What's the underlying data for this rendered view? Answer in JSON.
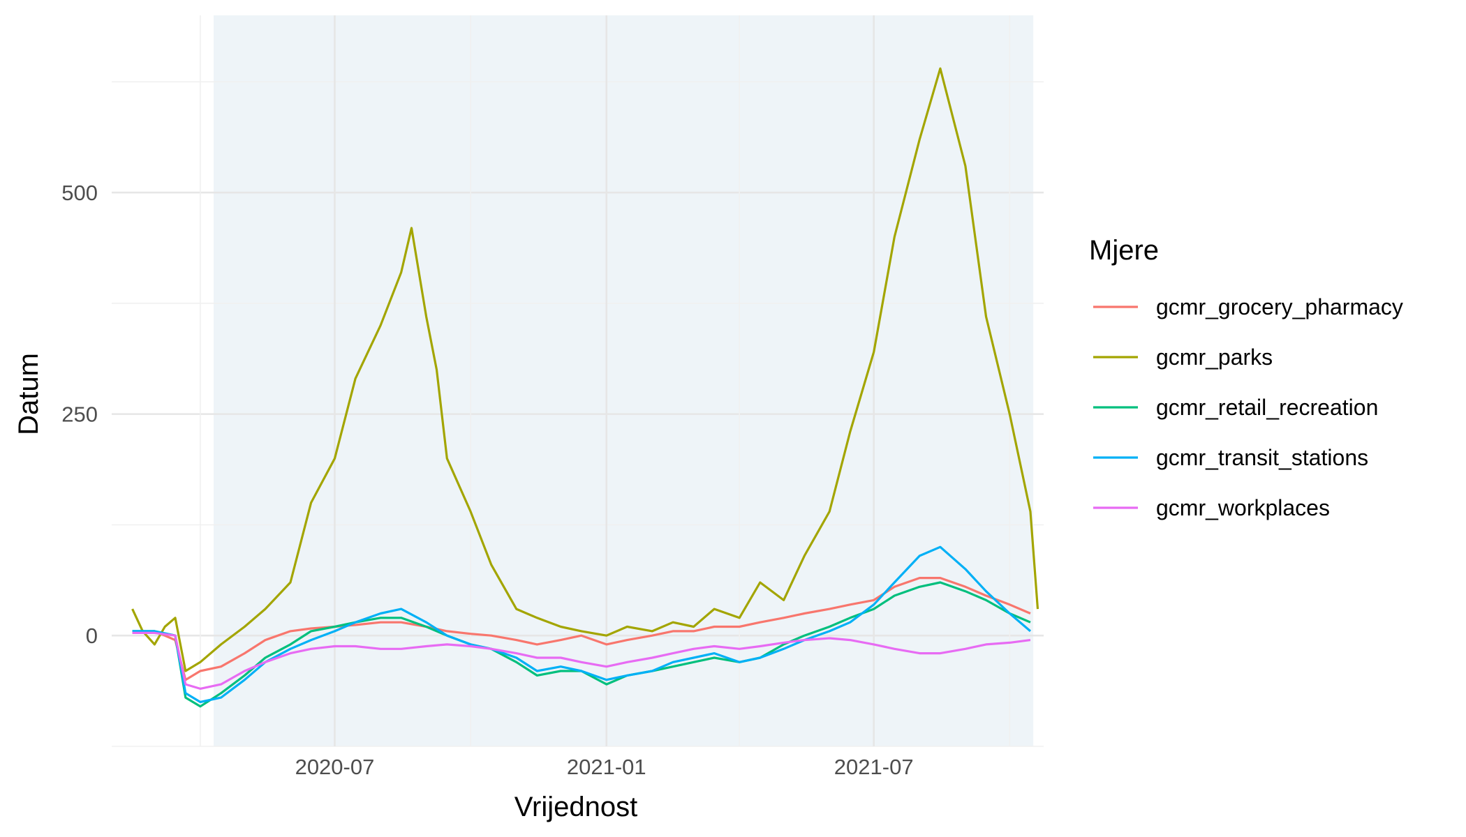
{
  "chart_data": {
    "type": "line",
    "xlabel": "Vrijednost",
    "ylabel": "Datum",
    "x_ticks": [
      "2020-07",
      "2021-01",
      "2021-07"
    ],
    "y_ticks": [
      0,
      250,
      500
    ],
    "xlim": [
      "2020-02-01",
      "2021-10-24"
    ],
    "ylim": [
      -125,
      700
    ],
    "shaded_region": {
      "from": "2020-04-10",
      "to": "2021-10-17",
      "color": "#eef4f8"
    },
    "grid": true,
    "legend": {
      "title": "Mjere",
      "position": "right"
    },
    "series": [
      {
        "name": "gcmr_grocery_pharmacy",
        "color": "#F8766D",
        "points": [
          [
            "2020-02-15",
            3
          ],
          [
            "2020-03-01",
            5
          ],
          [
            "2020-03-15",
            -5
          ],
          [
            "2020-03-22",
            -50
          ],
          [
            "2020-04-01",
            -40
          ],
          [
            "2020-04-15",
            -35
          ],
          [
            "2020-05-01",
            -20
          ],
          [
            "2020-05-15",
            -5
          ],
          [
            "2020-06-01",
            5
          ],
          [
            "2020-06-15",
            8
          ],
          [
            "2020-07-01",
            10
          ],
          [
            "2020-07-15",
            12
          ],
          [
            "2020-08-01",
            15
          ],
          [
            "2020-08-15",
            15
          ],
          [
            "2020-09-01",
            10
          ],
          [
            "2020-09-15",
            5
          ],
          [
            "2020-10-01",
            2
          ],
          [
            "2020-10-15",
            0
          ],
          [
            "2020-11-01",
            -5
          ],
          [
            "2020-11-15",
            -10
          ],
          [
            "2020-12-01",
            -5
          ],
          [
            "2020-12-15",
            0
          ],
          [
            "2021-01-01",
            -10
          ],
          [
            "2021-01-15",
            -5
          ],
          [
            "2021-02-01",
            0
          ],
          [
            "2021-02-15",
            5
          ],
          [
            "2021-03-01",
            5
          ],
          [
            "2021-03-15",
            10
          ],
          [
            "2021-04-01",
            10
          ],
          [
            "2021-04-15",
            15
          ],
          [
            "2021-05-01",
            20
          ],
          [
            "2021-05-15",
            25
          ],
          [
            "2021-06-01",
            30
          ],
          [
            "2021-06-15",
            35
          ],
          [
            "2021-07-01",
            40
          ],
          [
            "2021-07-15",
            55
          ],
          [
            "2021-08-01",
            65
          ],
          [
            "2021-08-15",
            65
          ],
          [
            "2021-09-01",
            55
          ],
          [
            "2021-09-15",
            45
          ],
          [
            "2021-10-01",
            35
          ],
          [
            "2021-10-15",
            25
          ]
        ]
      },
      {
        "name": "gcmr_parks",
        "color": "#A3A500",
        "points": [
          [
            "2020-02-15",
            30
          ],
          [
            "2020-02-22",
            5
          ],
          [
            "2020-03-01",
            -10
          ],
          [
            "2020-03-08",
            10
          ],
          [
            "2020-03-15",
            20
          ],
          [
            "2020-03-22",
            -40
          ],
          [
            "2020-04-01",
            -30
          ],
          [
            "2020-04-15",
            -10
          ],
          [
            "2020-05-01",
            10
          ],
          [
            "2020-05-15",
            30
          ],
          [
            "2020-06-01",
            60
          ],
          [
            "2020-06-15",
            150
          ],
          [
            "2020-07-01",
            200
          ],
          [
            "2020-07-15",
            290
          ],
          [
            "2020-08-01",
            350
          ],
          [
            "2020-08-15",
            410
          ],
          [
            "2020-08-22",
            460
          ],
          [
            "2020-09-01",
            360
          ],
          [
            "2020-09-08",
            300
          ],
          [
            "2020-09-15",
            200
          ],
          [
            "2020-10-01",
            140
          ],
          [
            "2020-10-15",
            80
          ],
          [
            "2020-11-01",
            30
          ],
          [
            "2020-11-15",
            20
          ],
          [
            "2020-12-01",
            10
          ],
          [
            "2020-12-15",
            5
          ],
          [
            "2021-01-01",
            0
          ],
          [
            "2021-01-15",
            10
          ],
          [
            "2021-02-01",
            5
          ],
          [
            "2021-02-15",
            15
          ],
          [
            "2021-03-01",
            10
          ],
          [
            "2021-03-15",
            30
          ],
          [
            "2021-04-01",
            20
          ],
          [
            "2021-04-15",
            60
          ],
          [
            "2021-05-01",
            40
          ],
          [
            "2021-05-15",
            90
          ],
          [
            "2021-06-01",
            140
          ],
          [
            "2021-06-15",
            230
          ],
          [
            "2021-07-01",
            320
          ],
          [
            "2021-07-15",
            450
          ],
          [
            "2021-08-01",
            560
          ],
          [
            "2021-08-15",
            640
          ],
          [
            "2021-09-01",
            530
          ],
          [
            "2021-09-15",
            360
          ],
          [
            "2021-10-01",
            250
          ],
          [
            "2021-10-15",
            140
          ],
          [
            "2021-10-20",
            30
          ]
        ]
      },
      {
        "name": "gcmr_retail_recreation",
        "color": "#00BF7D",
        "points": [
          [
            "2020-02-15",
            5
          ],
          [
            "2020-03-01",
            5
          ],
          [
            "2020-03-15",
            0
          ],
          [
            "2020-03-22",
            -70
          ],
          [
            "2020-04-01",
            -80
          ],
          [
            "2020-04-15",
            -65
          ],
          [
            "2020-05-01",
            -45
          ],
          [
            "2020-05-15",
            -25
          ],
          [
            "2020-06-01",
            -10
          ],
          [
            "2020-06-15",
            5
          ],
          [
            "2020-07-01",
            10
          ],
          [
            "2020-07-15",
            15
          ],
          [
            "2020-08-01",
            20
          ],
          [
            "2020-08-15",
            20
          ],
          [
            "2020-09-01",
            10
          ],
          [
            "2020-09-15",
            0
          ],
          [
            "2020-10-01",
            -10
          ],
          [
            "2020-10-15",
            -15
          ],
          [
            "2020-11-01",
            -30
          ],
          [
            "2020-11-15",
            -45
          ],
          [
            "2020-12-01",
            -40
          ],
          [
            "2020-12-15",
            -40
          ],
          [
            "2021-01-01",
            -55
          ],
          [
            "2021-01-15",
            -45
          ],
          [
            "2021-02-01",
            -40
          ],
          [
            "2021-02-15",
            -35
          ],
          [
            "2021-03-01",
            -30
          ],
          [
            "2021-03-15",
            -25
          ],
          [
            "2021-04-01",
            -30
          ],
          [
            "2021-04-15",
            -25
          ],
          [
            "2021-05-01",
            -10
          ],
          [
            "2021-05-15",
            0
          ],
          [
            "2021-06-01",
            10
          ],
          [
            "2021-06-15",
            20
          ],
          [
            "2021-07-01",
            30
          ],
          [
            "2021-07-15",
            45
          ],
          [
            "2021-08-01",
            55
          ],
          [
            "2021-08-15",
            60
          ],
          [
            "2021-09-01",
            50
          ],
          [
            "2021-09-15",
            40
          ],
          [
            "2021-10-01",
            25
          ],
          [
            "2021-10-15",
            15
          ]
        ]
      },
      {
        "name": "gcmr_transit_stations",
        "color": "#00B0F6",
        "points": [
          [
            "2020-02-15",
            5
          ],
          [
            "2020-03-01",
            5
          ],
          [
            "2020-03-15",
            0
          ],
          [
            "2020-03-22",
            -65
          ],
          [
            "2020-04-01",
            -75
          ],
          [
            "2020-04-15",
            -70
          ],
          [
            "2020-05-01",
            -50
          ],
          [
            "2020-05-15",
            -30
          ],
          [
            "2020-06-01",
            -15
          ],
          [
            "2020-06-15",
            -5
          ],
          [
            "2020-07-01",
            5
          ],
          [
            "2020-07-15",
            15
          ],
          [
            "2020-08-01",
            25
          ],
          [
            "2020-08-15",
            30
          ],
          [
            "2020-09-01",
            15
          ],
          [
            "2020-09-15",
            0
          ],
          [
            "2020-10-01",
            -10
          ],
          [
            "2020-10-15",
            -15
          ],
          [
            "2020-11-01",
            -25
          ],
          [
            "2020-11-15",
            -40
          ],
          [
            "2020-12-01",
            -35
          ],
          [
            "2020-12-15",
            -40
          ],
          [
            "2021-01-01",
            -50
          ],
          [
            "2021-01-15",
            -45
          ],
          [
            "2021-02-01",
            -40
          ],
          [
            "2021-02-15",
            -30
          ],
          [
            "2021-03-01",
            -25
          ],
          [
            "2021-03-15",
            -20
          ],
          [
            "2021-04-01",
            -30
          ],
          [
            "2021-04-15",
            -25
          ],
          [
            "2021-05-01",
            -15
          ],
          [
            "2021-05-15",
            -5
          ],
          [
            "2021-06-01",
            5
          ],
          [
            "2021-06-15",
            15
          ],
          [
            "2021-07-01",
            35
          ],
          [
            "2021-07-15",
            60
          ],
          [
            "2021-08-01",
            90
          ],
          [
            "2021-08-15",
            100
          ],
          [
            "2021-09-01",
            75
          ],
          [
            "2021-09-15",
            50
          ],
          [
            "2021-10-01",
            25
          ],
          [
            "2021-10-15",
            5
          ]
        ]
      },
      {
        "name": "gcmr_workplaces",
        "color": "#E76BF3",
        "points": [
          [
            "2020-02-15",
            3
          ],
          [
            "2020-03-01",
            3
          ],
          [
            "2020-03-15",
            0
          ],
          [
            "2020-03-22",
            -55
          ],
          [
            "2020-04-01",
            -60
          ],
          [
            "2020-04-15",
            -55
          ],
          [
            "2020-05-01",
            -40
          ],
          [
            "2020-05-15",
            -30
          ],
          [
            "2020-06-01",
            -20
          ],
          [
            "2020-06-15",
            -15
          ],
          [
            "2020-07-01",
            -12
          ],
          [
            "2020-07-15",
            -12
          ],
          [
            "2020-08-01",
            -15
          ],
          [
            "2020-08-15",
            -15
          ],
          [
            "2020-09-01",
            -12
          ],
          [
            "2020-09-15",
            -10
          ],
          [
            "2020-10-01",
            -12
          ],
          [
            "2020-10-15",
            -15
          ],
          [
            "2020-11-01",
            -20
          ],
          [
            "2020-11-15",
            -25
          ],
          [
            "2020-12-01",
            -25
          ],
          [
            "2020-12-15",
            -30
          ],
          [
            "2021-01-01",
            -35
          ],
          [
            "2021-01-15",
            -30
          ],
          [
            "2021-02-01",
            -25
          ],
          [
            "2021-02-15",
            -20
          ],
          [
            "2021-03-01",
            -15
          ],
          [
            "2021-03-15",
            -12
          ],
          [
            "2021-04-01",
            -15
          ],
          [
            "2021-04-15",
            -12
          ],
          [
            "2021-05-01",
            -8
          ],
          [
            "2021-05-15",
            -5
          ],
          [
            "2021-06-01",
            -3
          ],
          [
            "2021-06-15",
            -5
          ],
          [
            "2021-07-01",
            -10
          ],
          [
            "2021-07-15",
            -15
          ],
          [
            "2021-08-01",
            -20
          ],
          [
            "2021-08-15",
            -20
          ],
          [
            "2021-09-01",
            -15
          ],
          [
            "2021-09-15",
            -10
          ],
          [
            "2021-10-01",
            -8
          ],
          [
            "2021-10-15",
            -5
          ]
        ]
      }
    ]
  }
}
